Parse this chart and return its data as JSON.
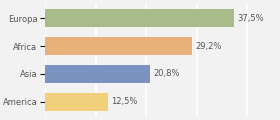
{
  "categories": [
    "Europa",
    "Africa",
    "Asia",
    "America"
  ],
  "values": [
    37.5,
    29.2,
    20.8,
    12.5
  ],
  "labels": [
    "37,5%",
    "29,2%",
    "20,8%",
    "12,5%"
  ],
  "bar_colors": [
    "#a8bb8a",
    "#e8b07a",
    "#7b93c0",
    "#f0d07a"
  ],
  "background_color": "#f2f2f2",
  "xlim": [
    0,
    46
  ],
  "label_fontsize": 6.0,
  "cat_fontsize": 6.0,
  "bar_height": 0.62,
  "grid_color": "#ffffff",
  "grid_linewidth": 1.2,
  "text_color": "#555555"
}
